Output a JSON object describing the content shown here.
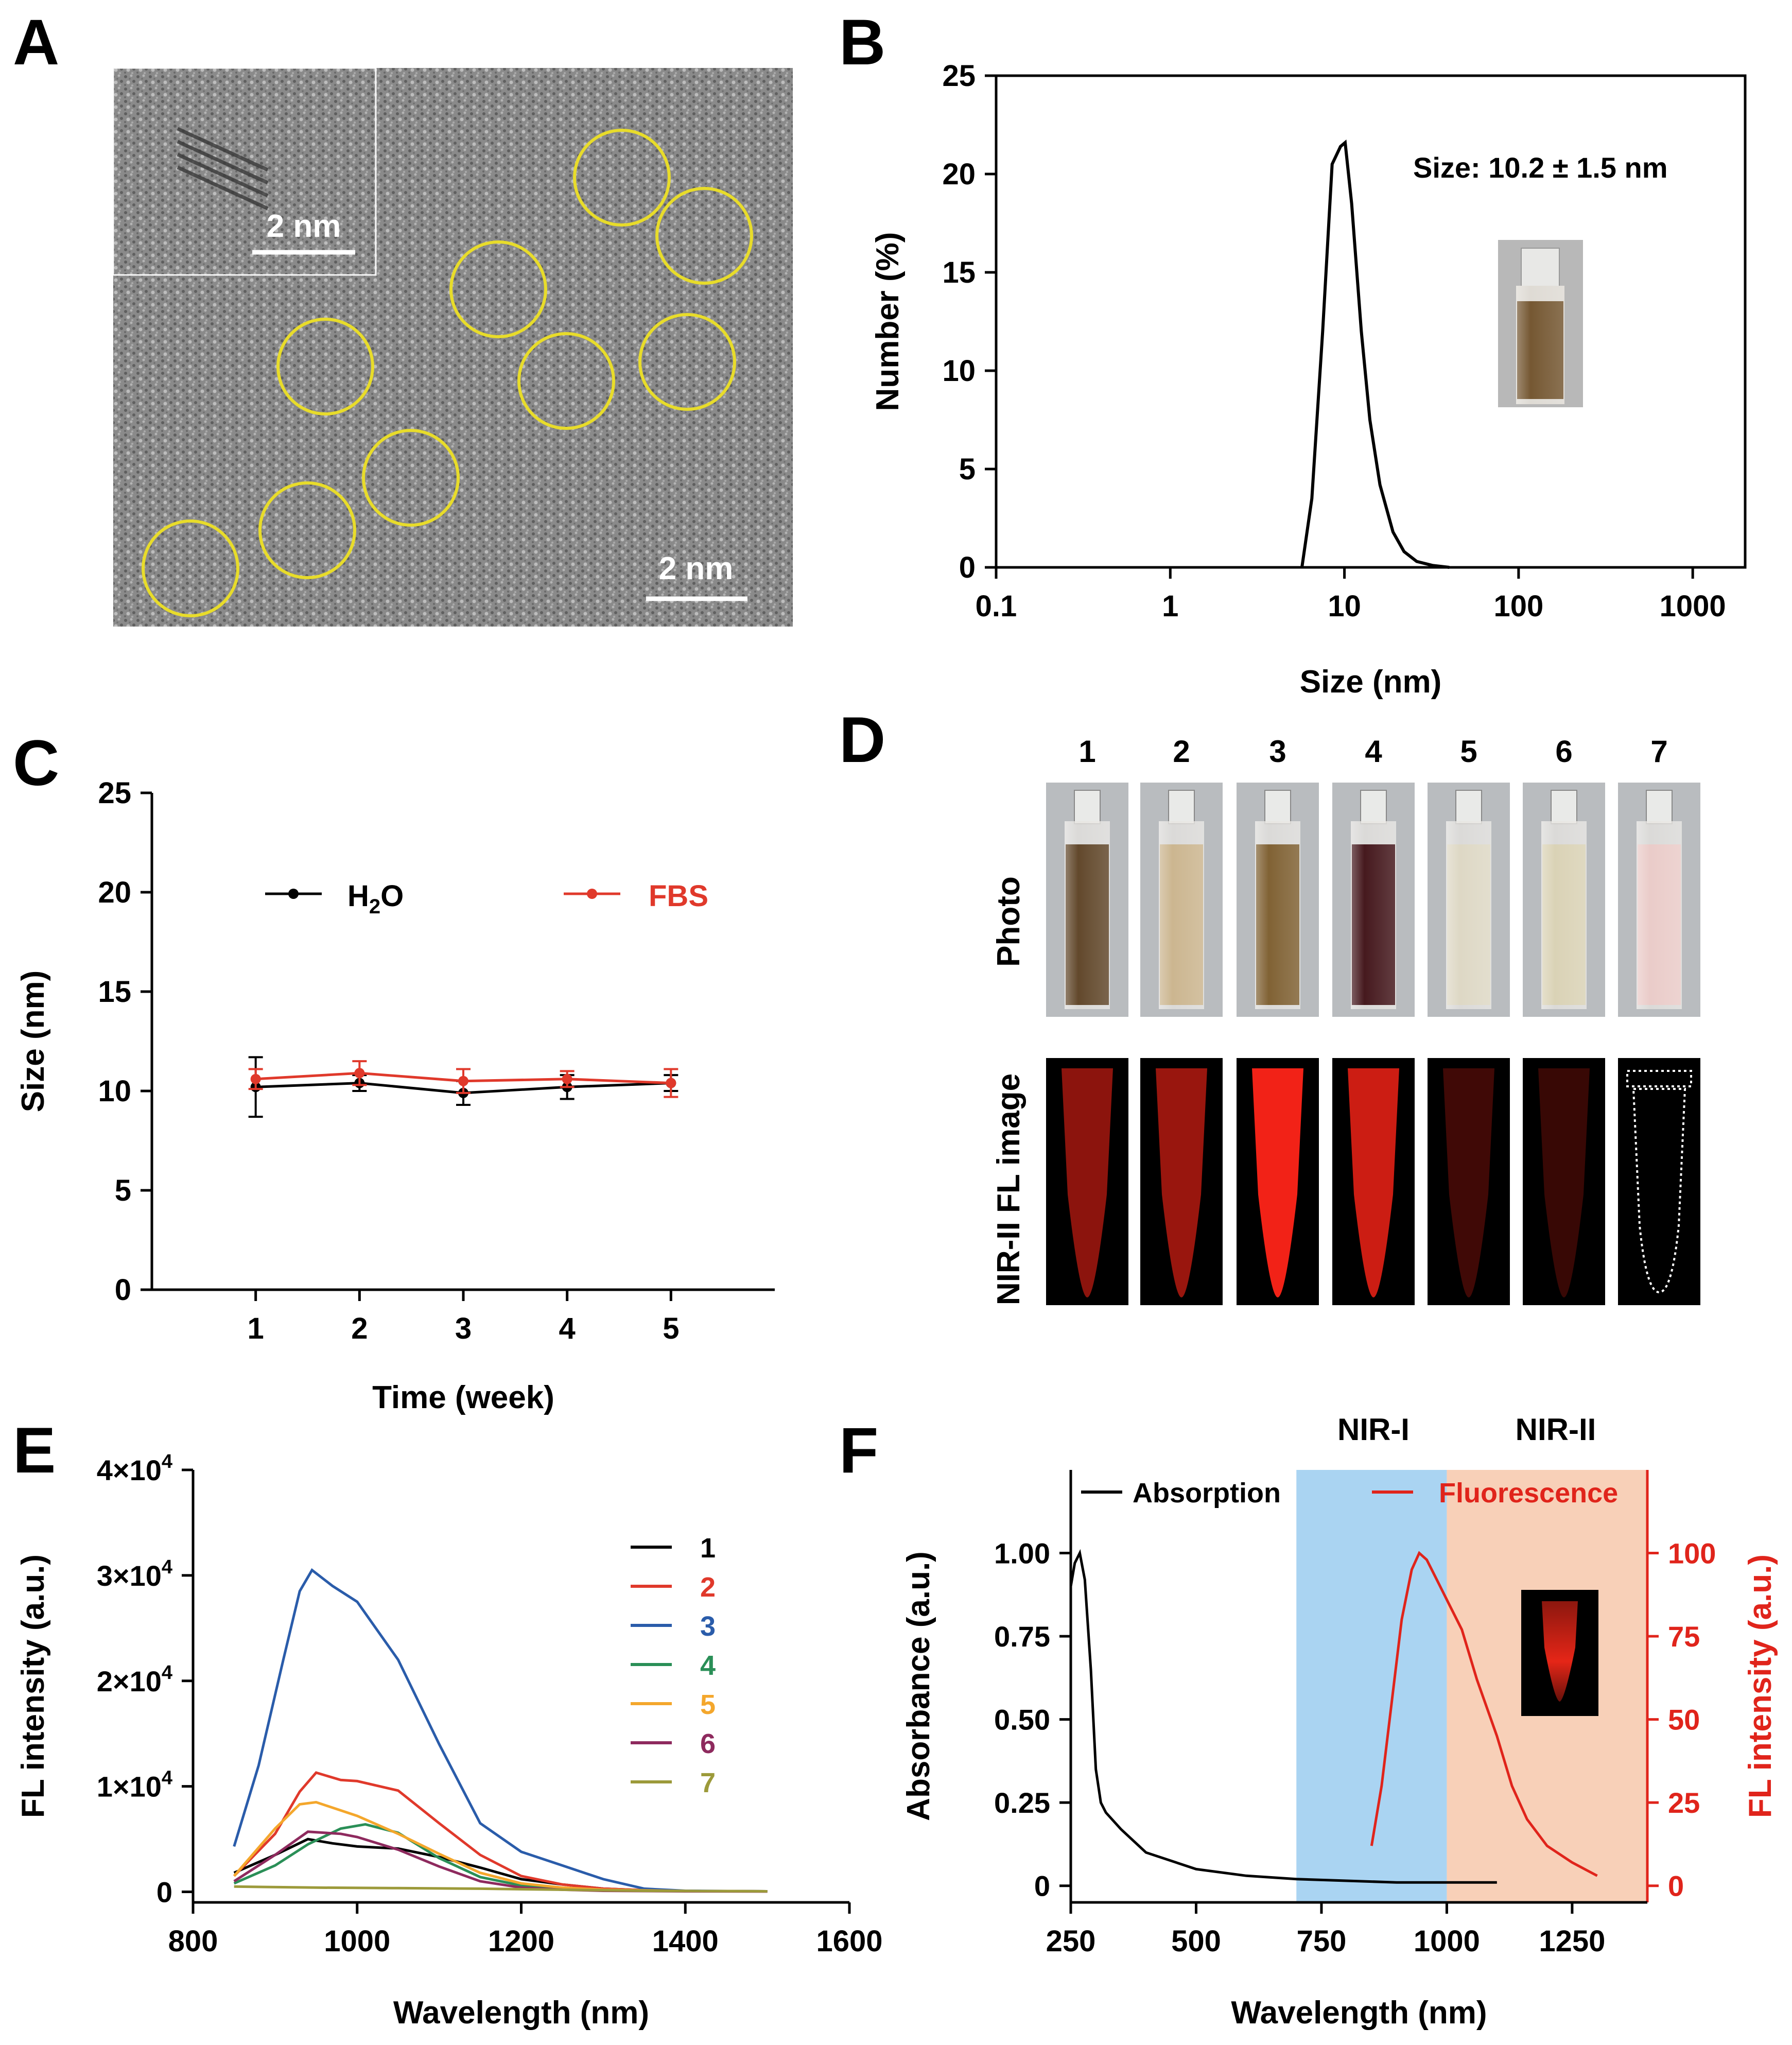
{
  "panels": {
    "A": {
      "letter": "A",
      "scale_bar_inset": "2 nm",
      "scale_bar_main": "2 nm"
    },
    "B": {
      "letter": "B",
      "annotation": "Size: 10.2 ± 1.5 nm"
    },
    "C": {
      "letter": "C",
      "legend_h2o_main": "H",
      "legend_h2o_sub": "2",
      "legend_h2o_tail": "O",
      "legend_fbs": "FBS"
    },
    "D": {
      "letter": "D",
      "row_photo": "Photo",
      "row_fl": "NIR-II FL image",
      "samples": [
        "1",
        "2",
        "3",
        "4",
        "5",
        "6",
        "7"
      ],
      "liquid_colors": [
        "#5a3f21",
        "#c9b28a",
        "#7a5a2a",
        "#3c0d12",
        "#dcd6c2",
        "#d8d0b2",
        "#e9c9c6"
      ],
      "fl_alpha": [
        0.55,
        0.6,
        0.95,
        0.8,
        0.25,
        0.22,
        0.0
      ]
    },
    "E": {
      "letter": "E"
    },
    "F": {
      "letter": "F",
      "band_nir1": "NIR-I",
      "band_nir2": "NIR-II",
      "band_nir1_color": "#aad4f2",
      "band_nir2_color": "#f8d0b8"
    }
  },
  "chart_data": [
    {
      "panel": "B",
      "type": "line",
      "xscale": "log",
      "xlim": [
        0.1,
        2000
      ],
      "ylim": [
        0,
        25
      ],
      "xticks": [
        0.1,
        1,
        10,
        100,
        1000
      ],
      "xtick_labels": [
        "0.1",
        "1",
        "10",
        "100",
        "1000"
      ],
      "yticks": [
        0,
        5,
        10,
        15,
        20,
        25
      ],
      "xlabel": "Size (nm)",
      "ylabel": "Number (%)",
      "series": [
        {
          "name": "size distribution",
          "color": "#000000",
          "x": [
            5.7,
            6.5,
            7.5,
            8.5,
            9.5,
            10.1,
            11,
            12.5,
            14,
            16,
            19,
            22,
            26,
            32,
            40
          ],
          "y": [
            0,
            3.5,
            12,
            20.5,
            21.4,
            21.6,
            18.5,
            12,
            7.5,
            4.2,
            1.8,
            0.8,
            0.3,
            0.1,
            0
          ]
        }
      ]
    },
    {
      "panel": "C",
      "type": "line",
      "xlim": [
        0,
        6
      ],
      "ylim": [
        0,
        25
      ],
      "xticks": [
        1,
        2,
        3,
        4,
        5
      ],
      "yticks": [
        0,
        5,
        10,
        15,
        20,
        25
      ],
      "xlabel": "Time (week)",
      "ylabel": "Size (nm)",
      "series": [
        {
          "name": "H2O",
          "color": "#000000",
          "x": [
            1,
            2,
            3,
            4,
            5
          ],
          "y": [
            10.2,
            10.4,
            9.9,
            10.2,
            10.4
          ],
          "err": [
            1.5,
            0.4,
            0.6,
            0.6,
            0.4
          ]
        },
        {
          "name": "FBS",
          "color": "#e0392b",
          "x": [
            1,
            2,
            3,
            4,
            5
          ],
          "y": [
            10.6,
            10.9,
            10.5,
            10.6,
            10.4
          ],
          "err": [
            0.5,
            0.6,
            0.6,
            0.4,
            0.7
          ]
        }
      ]
    },
    {
      "panel": "E",
      "type": "line",
      "xlim": [
        800,
        1600
      ],
      "ylim": [
        -1000,
        40000
      ],
      "xticks": [
        800,
        1000,
        1200,
        1400,
        1600
      ],
      "yticks": [
        0,
        10000,
        20000,
        30000,
        40000
      ],
      "ytick_labels": [
        "0",
        "1×10",
        "2×10",
        "3×10",
        "4×10"
      ],
      "ytick_exp": "4",
      "xlabel": "Wavelength (nm)",
      "ylabel": "FL intensity (a.u.)",
      "series": [
        {
          "name": "1",
          "color": "#000000",
          "x": [
            850,
            900,
            940,
            970,
            1000,
            1050,
            1100,
            1150,
            1200,
            1250,
            1300,
            1350,
            1400,
            1500
          ],
          "y": [
            1800,
            3500,
            5000,
            4600,
            4300,
            4100,
            3300,
            2300,
            1200,
            700,
            300,
            150,
            80,
            50
          ]
        },
        {
          "name": "2",
          "color": "#e0392b",
          "x": [
            850,
            900,
            930,
            950,
            980,
            1000,
            1050,
            1100,
            1150,
            1200,
            1250,
            1300,
            1350,
            1400,
            1500
          ],
          "y": [
            1500,
            5500,
            9500,
            11300,
            10600,
            10500,
            9600,
            6500,
            3500,
            1500,
            700,
            300,
            150,
            80,
            50
          ]
        },
        {
          "name": "3",
          "color": "#2a5caa",
          "x": [
            850,
            880,
            910,
            930,
            945,
            970,
            1000,
            1050,
            1100,
            1150,
            1200,
            1250,
            1300,
            1350,
            1400,
            1500
          ],
          "y": [
            4300,
            12000,
            22000,
            28500,
            30500,
            29000,
            27500,
            22000,
            14000,
            6500,
            3800,
            2500,
            1200,
            300,
            100,
            50
          ]
        },
        {
          "name": "4",
          "color": "#2a8f57",
          "x": [
            850,
            900,
            940,
            980,
            1010,
            1050,
            1100,
            1150,
            1200,
            1250,
            1300,
            1400,
            1500
          ],
          "y": [
            800,
            2500,
            4500,
            6000,
            6400,
            5600,
            3200,
            1400,
            600,
            300,
            150,
            80,
            50
          ]
        },
        {
          "name": "5",
          "color": "#f4a72c",
          "x": [
            850,
            900,
            930,
            950,
            1000,
            1050,
            1100,
            1150,
            1200,
            1250,
            1300,
            1400,
            1500
          ],
          "y": [
            1500,
            6000,
            8300,
            8500,
            7200,
            5500,
            3600,
            1800,
            800,
            400,
            200,
            80,
            50
          ]
        },
        {
          "name": "6",
          "color": "#8e2a5e",
          "x": [
            850,
            900,
            940,
            980,
            1000,
            1050,
            1100,
            1150,
            1200,
            1250,
            1300,
            1400,
            1500
          ],
          "y": [
            1000,
            3500,
            5700,
            5500,
            5200,
            4000,
            2400,
            1000,
            400,
            200,
            100,
            50,
            30
          ]
        },
        {
          "name": "7",
          "color": "#9c9a3a",
          "x": [
            850,
            950,
            1050,
            1150,
            1250,
            1350,
            1500
          ],
          "y": [
            500,
            400,
            350,
            300,
            200,
            100,
            50
          ]
        }
      ]
    },
    {
      "panel": "F",
      "type": "line",
      "xlim": [
        250,
        1400
      ],
      "ylim_left": [
        -0.05,
        1.25
      ],
      "ylim_right": [
        -5,
        125
      ],
      "xticks": [
        250,
        500,
        750,
        1000,
        1250
      ],
      "yticks_left": [
        0,
        0.25,
        0.5,
        0.75,
        1.0
      ],
      "ytick_labels_left": [
        "0",
        "0.25",
        "0.50",
        "0.75",
        "1.00"
      ],
      "yticks_right": [
        0,
        25,
        50,
        75,
        100
      ],
      "xlabel": "Wavelength (nm)",
      "ylabel_left": "Absorbance (a.u.)",
      "ylabel_right": "FL intensity (a.u.)",
      "bands": [
        {
          "name": "NIR-I",
          "from": 700,
          "to": 1000
        },
        {
          "name": "NIR-II",
          "from": 1000,
          "to": 1400
        }
      ],
      "series": [
        {
          "name": "Absorption",
          "axis": "left",
          "color": "#000000",
          "x": [
            250,
            258,
            268,
            278,
            290,
            300,
            310,
            320,
            350,
            400,
            500,
            600,
            700,
            800,
            900,
            1000,
            1100
          ],
          "y": [
            0.9,
            0.97,
            1.0,
            0.92,
            0.65,
            0.35,
            0.25,
            0.22,
            0.17,
            0.1,
            0.05,
            0.03,
            0.02,
            0.015,
            0.01,
            0.01,
            0.01
          ]
        },
        {
          "name": "Fluorescence",
          "axis": "right",
          "color": "#e0241b",
          "x": [
            850,
            870,
            890,
            910,
            930,
            945,
            960,
            980,
            1000,
            1030,
            1060,
            1100,
            1130,
            1160,
            1200,
            1250,
            1300
          ],
          "y": [
            12,
            30,
            55,
            80,
            95,
            100,
            98,
            92,
            86,
            77,
            62,
            45,
            30,
            20,
            12,
            7,
            3
          ]
        }
      ]
    }
  ]
}
